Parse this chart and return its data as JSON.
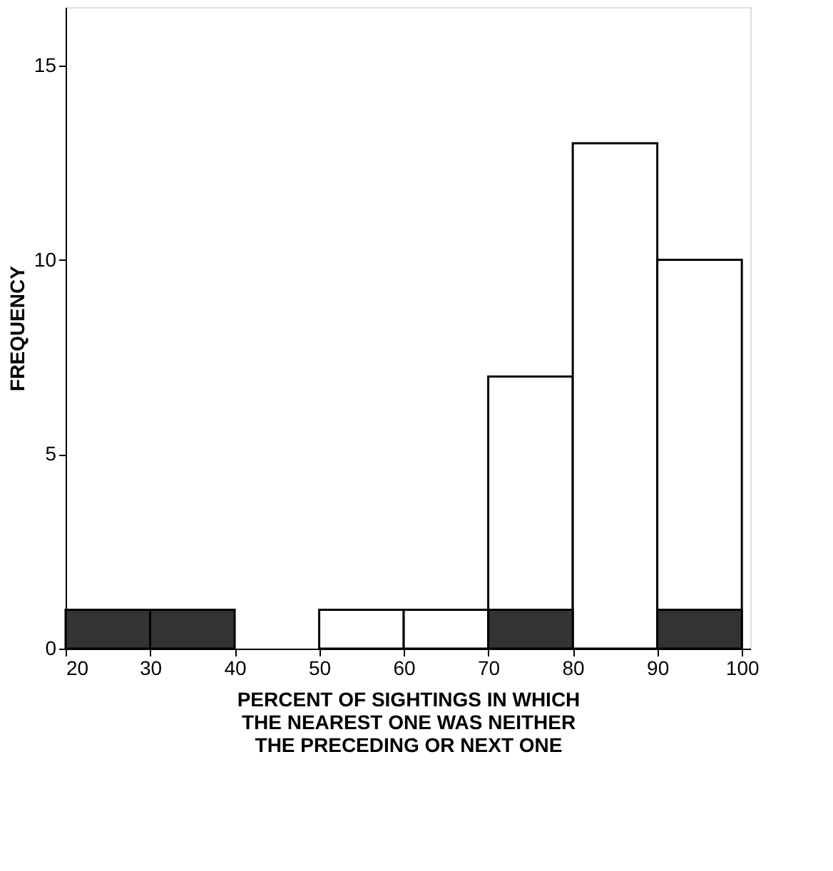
{
  "chart_data": {
    "type": "histogram",
    "xlabel": "PERCENT OF SIGHTINGS IN WHICH\nTHE NEAREST ONE WAS NEITHER\nTHE PRECEDING OR NEXT ONE",
    "ylabel": "FREQUENCY",
    "bins": [
      20,
      30,
      40,
      50,
      60,
      70,
      80,
      90,
      100
    ],
    "series": [
      {
        "color": "#ffffff",
        "values": [
          0,
          0,
          0,
          1,
          1,
          7,
          13,
          10
        ]
      },
      {
        "color": "#333333",
        "values": [
          1,
          1,
          0,
          0,
          0,
          1,
          0,
          1
        ]
      }
    ],
    "xlim": [
      20,
      101
    ],
    "xticks": [
      20,
      30,
      40,
      50,
      60,
      70,
      80,
      90,
      100
    ],
    "ylim": [
      0,
      16.5
    ],
    "yticks": [
      0,
      5,
      10,
      15
    ],
    "grid": false
  }
}
